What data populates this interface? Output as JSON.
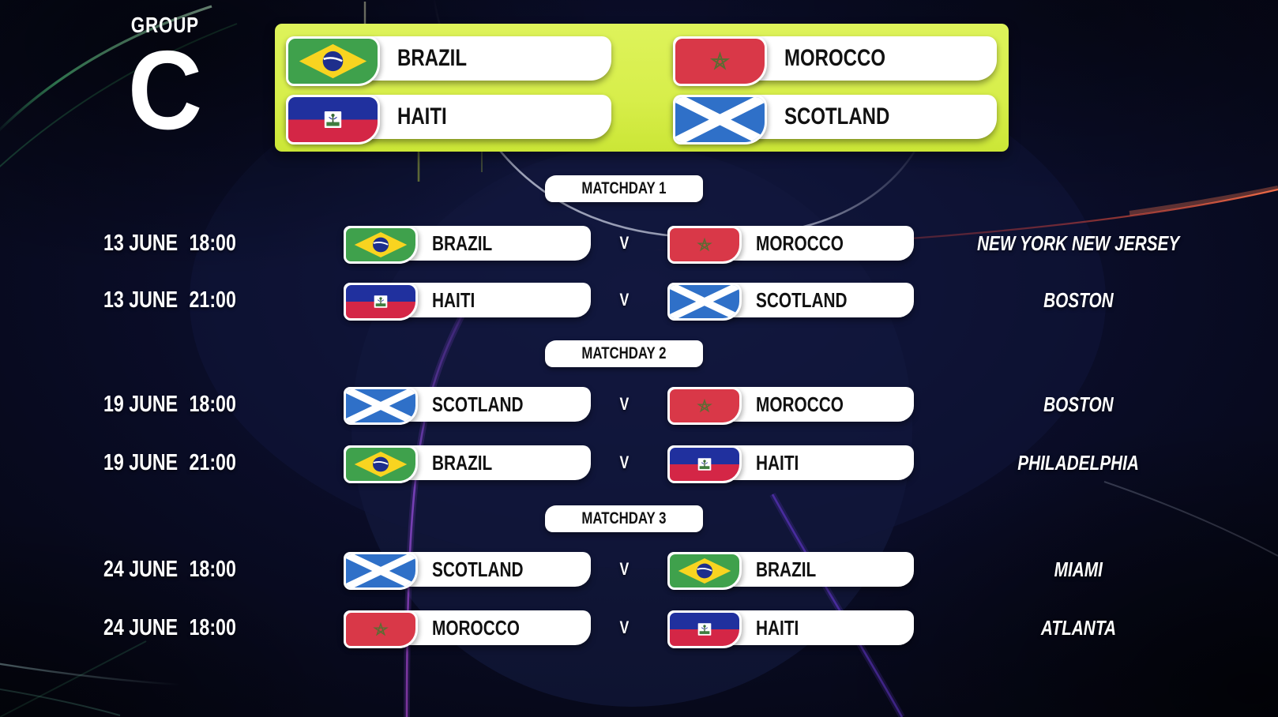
{
  "group": {
    "label": "GROUP",
    "letter": "C"
  },
  "teams": [
    {
      "name": "BRAZIL",
      "flag": "brazil"
    },
    {
      "name": "MOROCCO",
      "flag": "morocco"
    },
    {
      "name": "HAITI",
      "flag": "haiti"
    },
    {
      "name": "SCOTLAND",
      "flag": "scotland"
    }
  ],
  "matchdays": [
    {
      "label": "MATCHDAY 1",
      "fixtures": [
        {
          "date": "13 JUNE",
          "time": "18:00",
          "vs": "V",
          "home": {
            "name": "BRAZIL",
            "flag": "brazil"
          },
          "away": {
            "name": "MOROCCO",
            "flag": "morocco"
          },
          "venue": "NEW YORK NEW JERSEY"
        },
        {
          "date": "13 JUNE",
          "time": "21:00",
          "vs": "V",
          "home": {
            "name": "HAITI",
            "flag": "haiti"
          },
          "away": {
            "name": "SCOTLAND",
            "flag": "scotland"
          },
          "venue": "BOSTON"
        }
      ]
    },
    {
      "label": "MATCHDAY 2",
      "fixtures": [
        {
          "date": "19 JUNE",
          "time": "18:00",
          "vs": "V",
          "home": {
            "name": "SCOTLAND",
            "flag": "scotland"
          },
          "away": {
            "name": "MOROCCO",
            "flag": "morocco"
          },
          "venue": "BOSTON"
        },
        {
          "date": "19 JUNE",
          "time": "21:00",
          "vs": "V",
          "home": {
            "name": "BRAZIL",
            "flag": "brazil"
          },
          "away": {
            "name": "HAITI",
            "flag": "haiti"
          },
          "venue": "PHILADELPHIA"
        }
      ]
    },
    {
      "label": "MATCHDAY 3",
      "fixtures": [
        {
          "date": "24 JUNE",
          "time": "18:00",
          "vs": "V",
          "home": {
            "name": "SCOTLAND",
            "flag": "scotland"
          },
          "away": {
            "name": "BRAZIL",
            "flag": "brazil"
          },
          "venue": "MIAMI"
        },
        {
          "date": "24 JUNE",
          "time": "18:00",
          "vs": "V",
          "home": {
            "name": "MOROCCO",
            "flag": "morocco"
          },
          "away": {
            "name": "HAITI",
            "flag": "haiti"
          },
          "venue": "ATLANTA"
        }
      ]
    }
  ],
  "colors": {
    "background_navy": "#0a0d28",
    "panel_yellow": "#d7ee4a",
    "plate_white": "#ffffff",
    "text_dark": "#111111",
    "text_light": "#ffffff",
    "accent_purple": "#6a3bd8",
    "accent_magenta": "#c45cf0",
    "accent_green": "#47d07f",
    "accent_red": "#e8503a",
    "flags": {
      "brazil": {
        "field": "#3fa14c",
        "diamond": "#f8d420",
        "circle": "#1e2f8c",
        "band": "#ffffff"
      },
      "morocco": {
        "field": "#d93848",
        "star": "#5d6b33"
      },
      "haiti": {
        "top": "#20309e",
        "bottom": "#d42646",
        "emblem": "#ffffff",
        "lawn": "#3f7d3f"
      },
      "scotland": {
        "field": "#2f70c8",
        "saltire": "#ffffff"
      }
    }
  }
}
